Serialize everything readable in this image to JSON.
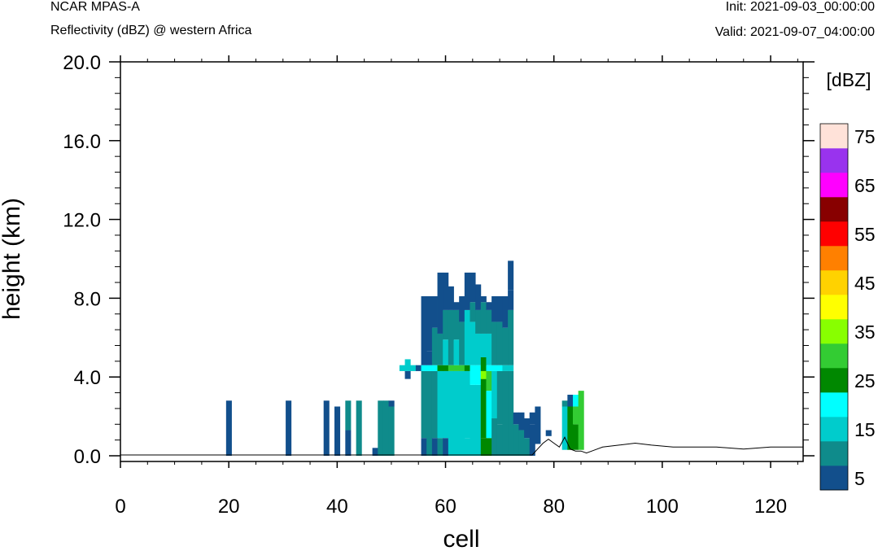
{
  "header": {
    "left_line1": "NCAR MPAS-A",
    "left_line2": "Reflectivity (dBZ) @ western Africa",
    "right_line1": "Init: 2021-09-03_00:00:00",
    "right_line2": "Valid: 2021-09-07_04:00:00"
  },
  "chart_data": {
    "type": "heatmap",
    "title": "Reflectivity (dBZ) @ western Africa",
    "xlabel": "cell",
    "ylabel": "height (km)",
    "xlim": [
      0,
      126
    ],
    "ylim": [
      -0.3,
      20
    ],
    "x_ticks": [
      0,
      20,
      40,
      60,
      80,
      100,
      120
    ],
    "x_tick_labels": [
      "0",
      "20",
      "40",
      "60",
      "80",
      "100",
      "120"
    ],
    "y_ticks": [
      0,
      4,
      8,
      12,
      16,
      20
    ],
    "y_tick_labels": [
      "0.0",
      "4.0",
      "8.0",
      "12.0",
      "16.0",
      "20.0"
    ],
    "colorbar": {
      "label": "[dBZ]",
      "levels": [
        5,
        10,
        15,
        20,
        25,
        30,
        35,
        40,
        45,
        50,
        55,
        60,
        65,
        70,
        75
      ],
      "tick_labels": [
        "5",
        "15",
        "25",
        "35",
        "45",
        "55",
        "65",
        "75"
      ],
      "colors": [
        "#124f8c",
        "#0f8b8b",
        "#00cccc",
        "#00ffff",
        "#008800",
        "#33cc33",
        "#88ff00",
        "#ffff00",
        "#ffd200",
        "#ff8000",
        "#ff0000",
        "#880000",
        "#ff00ff",
        "#9933ee",
        "#ffe2d9"
      ]
    },
    "cell_height_km": 0.5,
    "columns": [
      {
        "x": 20,
        "cells": [
          {
            "z": 0,
            "top": 2.8,
            "dbz": 5
          }
        ]
      },
      {
        "x": 31,
        "cells": [
          {
            "z": 0,
            "top": 2.8,
            "dbz": 5
          }
        ]
      },
      {
        "x": 38,
        "cells": [
          {
            "z": 0,
            "top": 2.8,
            "dbz": 5
          }
        ]
      },
      {
        "x": 40,
        "cells": [
          {
            "z": 0,
            "top": 2.5,
            "dbz": 5
          }
        ]
      },
      {
        "x": 42,
        "cells": [
          {
            "z": 0,
            "top": 1.3,
            "dbz": 5
          },
          {
            "z": 1.3,
            "top": 2.8,
            "dbz": 10
          }
        ]
      },
      {
        "x": 44,
        "cells": [
          {
            "z": 0,
            "top": 2.8,
            "dbz": 10
          }
        ]
      },
      {
        "x": 47,
        "cells": [
          {
            "z": 0,
            "top": 0.4,
            "dbz": 5
          }
        ]
      },
      {
        "x": 48,
        "cells": [
          {
            "z": 0,
            "top": 2.8,
            "dbz": 10
          }
        ]
      },
      {
        "x": 49,
        "cells": [
          {
            "z": 0,
            "top": 2.8,
            "dbz": 10
          }
        ]
      },
      {
        "x": 50,
        "cells": [
          {
            "z": 0,
            "top": 2.5,
            "dbz": 10
          },
          {
            "z": 2.5,
            "top": 2.8,
            "dbz": 5
          }
        ]
      },
      {
        "x": 52,
        "cells": [
          {
            "z": 4.3,
            "top": 4.6,
            "dbz": 15
          }
        ]
      },
      {
        "x": 53,
        "cells": [
          {
            "z": 3.9,
            "top": 4.3,
            "dbz": 5
          },
          {
            "z": 4.3,
            "top": 4.9,
            "dbz": 15
          }
        ]
      },
      {
        "x": 54,
        "cells": [
          {
            "z": 4.3,
            "top": 4.6,
            "dbz": 15
          }
        ]
      },
      {
        "x": 55,
        "cells": [
          {
            "z": 4.3,
            "top": 4.6,
            "dbz": 5
          }
        ]
      },
      {
        "x": 56,
        "cells": [
          {
            "z": 0,
            "top": 0.9,
            "dbz": 5
          },
          {
            "z": 0.9,
            "top": 4.3,
            "dbz": 10
          },
          {
            "z": 4.3,
            "top": 4.6,
            "dbz": 20
          },
          {
            "z": 4.6,
            "top": 8.1,
            "dbz": 5
          }
        ]
      },
      {
        "x": 57,
        "cells": [
          {
            "z": 0,
            "top": 4.3,
            "dbz": 10
          },
          {
            "z": 4.3,
            "top": 4.6,
            "dbz": 20
          },
          {
            "z": 4.6,
            "top": 5.3,
            "dbz": 5
          },
          {
            "z": 5.3,
            "top": 8.1,
            "dbz": 5
          }
        ]
      },
      {
        "x": 58,
        "cells": [
          {
            "z": 0,
            "top": 0.9,
            "dbz": 5
          },
          {
            "z": 0.9,
            "top": 4.3,
            "dbz": 10
          },
          {
            "z": 4.3,
            "top": 4.6,
            "dbz": 20
          },
          {
            "z": 4.6,
            "top": 6.5,
            "dbz": 10
          },
          {
            "z": 6.5,
            "top": 8.1,
            "dbz": 5
          }
        ]
      },
      {
        "x": 59,
        "cells": [
          {
            "z": 0,
            "top": 0.9,
            "dbz": 10
          },
          {
            "z": 0.9,
            "top": 4.3,
            "dbz": 15
          },
          {
            "z": 4.3,
            "top": 4.6,
            "dbz": 25
          },
          {
            "z": 4.6,
            "top": 6.2,
            "dbz": 10
          },
          {
            "z": 6.2,
            "top": 9.3,
            "dbz": 5
          }
        ]
      },
      {
        "x": 60,
        "cells": [
          {
            "z": 0,
            "top": 0.9,
            "dbz": 5
          },
          {
            "z": 0.9,
            "top": 4.3,
            "dbz": 15
          },
          {
            "z": 4.3,
            "top": 4.6,
            "dbz": 25
          },
          {
            "z": 4.6,
            "top": 5.9,
            "dbz": 15
          },
          {
            "z": 5.9,
            "top": 7.4,
            "dbz": 10
          },
          {
            "z": 7.4,
            "top": 9.3,
            "dbz": 5
          }
        ]
      },
      {
        "x": 61,
        "cells": [
          {
            "z": 0,
            "top": 4.3,
            "dbz": 15
          },
          {
            "z": 4.3,
            "top": 4.6,
            "dbz": 30
          },
          {
            "z": 4.6,
            "top": 7.4,
            "dbz": 10
          },
          {
            "z": 7.4,
            "top": 8.6,
            "dbz": 5
          }
        ]
      },
      {
        "x": 62,
        "cells": [
          {
            "z": 0,
            "top": 4.3,
            "dbz": 15
          },
          {
            "z": 4.3,
            "top": 4.6,
            "dbz": 30
          },
          {
            "z": 4.6,
            "top": 5.9,
            "dbz": 15
          },
          {
            "z": 5.9,
            "top": 7.4,
            "dbz": 10
          },
          {
            "z": 7.4,
            "top": 7.8,
            "dbz": 5
          }
        ]
      },
      {
        "x": 63,
        "cells": [
          {
            "z": 0,
            "top": 4.3,
            "dbz": 15
          },
          {
            "z": 4.3,
            "top": 4.6,
            "dbz": 30
          },
          {
            "z": 4.6,
            "top": 6.8,
            "dbz": 10
          },
          {
            "z": 6.8,
            "top": 8.1,
            "dbz": 5
          }
        ]
      },
      {
        "x": 64,
        "cells": [
          {
            "z": 0,
            "top": 0.9,
            "dbz": 15
          },
          {
            "z": 0.9,
            "top": 4.3,
            "dbz": 15
          },
          {
            "z": 4.3,
            "top": 4.6,
            "dbz": 25
          },
          {
            "z": 4.6,
            "top": 7.4,
            "dbz": 15
          },
          {
            "z": 7.4,
            "top": 9.3,
            "dbz": 5
          }
        ]
      },
      {
        "x": 65,
        "cells": [
          {
            "z": 0,
            "top": 3.6,
            "dbz": 15
          },
          {
            "z": 3.6,
            "top": 4.6,
            "dbz": 20
          },
          {
            "z": 4.6,
            "top": 6.8,
            "dbz": 15
          },
          {
            "z": 6.8,
            "top": 7.8,
            "dbz": 10
          },
          {
            "z": 7.8,
            "top": 9.3,
            "dbz": 5
          }
        ]
      },
      {
        "x": 66,
        "cells": [
          {
            "z": 0,
            "top": 3.6,
            "dbz": 15
          },
          {
            "z": 3.6,
            "top": 4.6,
            "dbz": 20
          },
          {
            "z": 4.6,
            "top": 6.2,
            "dbz": 15
          },
          {
            "z": 6.2,
            "top": 7.4,
            "dbz": 10
          },
          {
            "z": 7.4,
            "top": 8.7,
            "dbz": 5
          }
        ]
      },
      {
        "x": 67,
        "cells": [
          {
            "z": 0,
            "top": 0.9,
            "dbz": 25
          },
          {
            "z": 0.9,
            "top": 3.9,
            "dbz": 25
          },
          {
            "z": 3.9,
            "top": 4.3,
            "dbz": 35
          },
          {
            "z": 4.3,
            "top": 5.0,
            "dbz": 25
          },
          {
            "z": 5.0,
            "top": 6.2,
            "dbz": 15
          },
          {
            "z": 6.2,
            "top": 7.8,
            "dbz": 10
          },
          {
            "z": 7.8,
            "top": 8.1,
            "dbz": 5
          }
        ]
      },
      {
        "x": 68,
        "cells": [
          {
            "z": 0,
            "top": 0.9,
            "dbz": 25
          },
          {
            "z": 0.9,
            "top": 3.3,
            "dbz": 20
          },
          {
            "z": 3.3,
            "top": 4.3,
            "dbz": 30
          },
          {
            "z": 4.3,
            "top": 4.6,
            "dbz": 20
          },
          {
            "z": 4.6,
            "top": 6.2,
            "dbz": 15
          },
          {
            "z": 6.2,
            "top": 7.4,
            "dbz": 10
          },
          {
            "z": 7.4,
            "top": 7.8,
            "dbz": 5
          }
        ]
      },
      {
        "x": 69,
        "cells": [
          {
            "z": 0,
            "top": 1.9,
            "dbz": 10
          },
          {
            "z": 1.9,
            "top": 4.3,
            "dbz": 15
          },
          {
            "z": 4.3,
            "top": 4.6,
            "dbz": 20
          },
          {
            "z": 4.6,
            "top": 6.8,
            "dbz": 10
          },
          {
            "z": 6.8,
            "top": 8.1,
            "dbz": 5
          }
        ]
      },
      {
        "x": 70,
        "cells": [
          {
            "z": 0,
            "top": 1.6,
            "dbz": 10
          },
          {
            "z": 1.6,
            "top": 4.3,
            "dbz": 10
          },
          {
            "z": 4.3,
            "top": 4.6,
            "dbz": 20
          },
          {
            "z": 4.6,
            "top": 6.8,
            "dbz": 10
          },
          {
            "z": 6.8,
            "top": 8.1,
            "dbz": 5
          }
        ]
      },
      {
        "x": 71,
        "cells": [
          {
            "z": 0,
            "top": 4.3,
            "dbz": 10
          },
          {
            "z": 4.3,
            "top": 4.6,
            "dbz": 15
          },
          {
            "z": 4.6,
            "top": 6.5,
            "dbz": 10
          },
          {
            "z": 6.5,
            "top": 8.1,
            "dbz": 5
          }
        ]
      },
      {
        "x": 72,
        "cells": [
          {
            "z": 0,
            "top": 4.3,
            "dbz": 10
          },
          {
            "z": 4.3,
            "top": 4.6,
            "dbz": 15
          },
          {
            "z": 4.6,
            "top": 7.4,
            "dbz": 10
          },
          {
            "z": 7.4,
            "top": 8.4,
            "dbz": 5
          },
          {
            "z": 8.4,
            "top": 9.9,
            "dbz": 5
          }
        ]
      },
      {
        "x": 73,
        "cells": [
          {
            "z": 0,
            "top": 1.6,
            "dbz": 10
          },
          {
            "z": 1.6,
            "top": 2.2,
            "dbz": 5
          }
        ]
      },
      {
        "x": 74,
        "cells": [
          {
            "z": 0,
            "top": 1.3,
            "dbz": 10
          },
          {
            "z": 1.3,
            "top": 2.2,
            "dbz": 5
          }
        ]
      },
      {
        "x": 75,
        "cells": [
          {
            "z": 0,
            "top": 0.9,
            "dbz": 10
          },
          {
            "z": 0.9,
            "top": 1.9,
            "dbz": 5
          }
        ]
      },
      {
        "x": 76,
        "cells": [
          {
            "z": 0,
            "top": 1.6,
            "dbz": 5
          },
          {
            "z": 1.6,
            "top": 2.2,
            "dbz": 5
          }
        ]
      },
      {
        "x": 77,
        "cells": [
          {
            "z": 0.6,
            "top": 2.5,
            "dbz": 5
          }
        ]
      },
      {
        "x": 79,
        "cells": [
          {
            "z": 1.0,
            "top": 1.3,
            "dbz": 5
          }
        ]
      },
      {
        "x": 82,
        "cells": [
          {
            "z": 0.3,
            "top": 2.5,
            "dbz": 15
          },
          {
            "z": 2.5,
            "top": 2.8,
            "dbz": 10
          }
        ]
      },
      {
        "x": 83,
        "cells": [
          {
            "z": 0.3,
            "top": 2.5,
            "dbz": 25
          },
          {
            "z": 2.5,
            "top": 3.1,
            "dbz": 5
          }
        ]
      },
      {
        "x": 84,
        "cells": [
          {
            "z": 0.3,
            "top": 1.6,
            "dbz": 25
          },
          {
            "z": 1.6,
            "top": 2.5,
            "dbz": 30
          },
          {
            "z": 2.5,
            "top": 3.1,
            "dbz": 20
          }
        ]
      },
      {
        "x": 85,
        "cells": [
          {
            "z": 0.3,
            "top": 3.3,
            "dbz": 30
          }
        ]
      }
    ],
    "terrain": [
      [
        0,
        0
      ],
      [
        76,
        0
      ],
      [
        77,
        0.3
      ],
      [
        78,
        0.6
      ],
      [
        79,
        0.8
      ],
      [
        80,
        0.6
      ],
      [
        81,
        0.4
      ],
      [
        82,
        0.9
      ],
      [
        83,
        0.3
      ],
      [
        84,
        0.2
      ],
      [
        85,
        0.2
      ],
      [
        86,
        0.1
      ],
      [
        87,
        0.2
      ],
      [
        88,
        0.3
      ],
      [
        89,
        0.4
      ],
      [
        92,
        0.5
      ],
      [
        95,
        0.6
      ],
      [
        98,
        0.5
      ],
      [
        102,
        0.4
      ],
      [
        106,
        0.4
      ],
      [
        110,
        0.4
      ],
      [
        115,
        0.3
      ],
      [
        120,
        0.4
      ],
      [
        126,
        0.4
      ]
    ]
  }
}
